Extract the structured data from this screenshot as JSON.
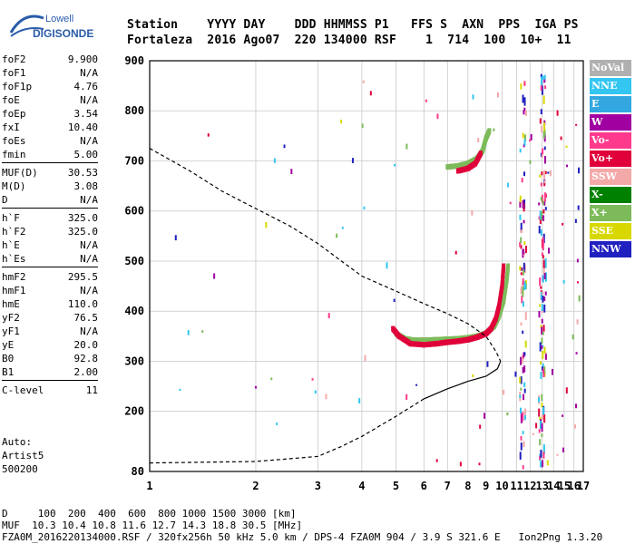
{
  "logo": {
    "line1": "Lowell",
    "line2": "DIGISONDE"
  },
  "header": {
    "labels": "Station    YYYY DAY    DDD HHMMSS P1   FFS S  AXN  PPS  IGA PS",
    "values": "Fortaleza  2016 Ago07  220 134000 RSF    1  714  100  10+  11"
  },
  "params": [
    {
      "label": "foF2",
      "value": "9.900"
    },
    {
      "label": "foF1",
      "value": "N/A"
    },
    {
      "label": "foF1p",
      "value": "4.76"
    },
    {
      "label": "foE",
      "value": "N/A"
    },
    {
      "label": "foEp",
      "value": "3.54"
    },
    {
      "label": "fxI",
      "value": "10.40"
    },
    {
      "label": "foEs",
      "value": "N/A"
    },
    {
      "label": "fmin",
      "value": "5.00"
    },
    {
      "label": "MUF(D)",
      "value": "30.53"
    },
    {
      "label": "M(D)",
      "value": "3.08"
    },
    {
      "label": "D",
      "value": "N/A"
    },
    {
      "label": "h`F",
      "value": "325.0"
    },
    {
      "label": "h`F2",
      "value": "325.0"
    },
    {
      "label": "h`E",
      "value": "N/A"
    },
    {
      "label": "h`Es",
      "value": "N/A"
    },
    {
      "label": "hmF2",
      "value": "295.5"
    },
    {
      "label": "hmF1",
      "value": "N/A"
    },
    {
      "label": "hmE",
      "value": "110.0"
    },
    {
      "label": "yF2",
      "value": "76.5"
    },
    {
      "label": "yF1",
      "value": "N/A"
    },
    {
      "label": "yE",
      "value": "20.0"
    },
    {
      "label": "B0",
      "value": "92.8"
    },
    {
      "label": "B1",
      "value": "2.00"
    },
    {
      "label": "C-level",
      "value": "11"
    }
  ],
  "auto": {
    "line1": "Auto:",
    "line2": "Artist5",
    "line3": "500200"
  },
  "legend": [
    {
      "label": "NoVal",
      "color": "#b0b0b0"
    },
    {
      "label": "NNE",
      "color": "#33c6f0"
    },
    {
      "label": "E",
      "color": "#33a8e0"
    },
    {
      "label": "W",
      "color": "#a000a0"
    },
    {
      "label": "Vo-",
      "color": "#ff3a8c"
    },
    {
      "label": "Vo+",
      "color": "#e0003a"
    },
    {
      "label": "SSW",
      "color": "#f4a9a9"
    },
    {
      "label": "X-",
      "color": "#008000"
    },
    {
      "label": "X+",
      "color": "#7dbb5a"
    },
    {
      "label": "SSE",
      "color": "#d8d800"
    },
    {
      "label": "NNW",
      "color": "#2020c0"
    }
  ],
  "footer": {
    "line1": "D     100  200  400  600  800 1000 1500 3000 [km]",
    "line2": "MUF  10.3 10.4 10.8 11.6 12.7 14.3 18.8 30.5 [MHz]",
    "line3": "FZA0M_2016220134000.RSF / 320fx256h 50 kHz 5.0 km / DPS-4 FZA0M 904 / 3.9 S 321.6 E   Ion2Png 1.3.20"
  },
  "chart_data": {
    "type": "scatter",
    "x_ticks": [
      1,
      2,
      3,
      4,
      5,
      6,
      7,
      8,
      9,
      10,
      11,
      12,
      13,
      14,
      15,
      16,
      17
    ],
    "y_ticks": [
      80,
      200,
      300,
      400,
      500,
      600,
      700,
      800,
      900
    ],
    "xlim": [
      1,
      17
    ],
    "ylim": [
      80,
      900
    ],
    "x_scale": "log",
    "grid": true,
    "series": [
      {
        "name": "X+",
        "color": "#7dbb5a",
        "points": [
          [
            5.0,
            355
          ],
          [
            5.3,
            345
          ],
          [
            5.6,
            342
          ],
          [
            6.0,
            342
          ],
          [
            6.5,
            343
          ],
          [
            7.0,
            344
          ],
          [
            7.5,
            345
          ],
          [
            8.0,
            347
          ],
          [
            8.5,
            350
          ],
          [
            9.0,
            356
          ],
          [
            9.5,
            370
          ],
          [
            9.8,
            390
          ],
          [
            10.1,
            420
          ],
          [
            10.3,
            460
          ],
          [
            10.4,
            490
          ],
          [
            7.0,
            688
          ],
          [
            7.5,
            690
          ],
          [
            8.0,
            695
          ],
          [
            8.5,
            705
          ],
          [
            8.8,
            720
          ],
          [
            9.0,
            745
          ],
          [
            9.2,
            760
          ]
        ]
      },
      {
        "name": "Vo+",
        "color": "#e0003a",
        "points": [
          [
            4.9,
            365
          ],
          [
            5.1,
            350
          ],
          [
            5.5,
            335
          ],
          [
            6.0,
            333
          ],
          [
            6.5,
            335
          ],
          [
            7.0,
            338
          ],
          [
            7.5,
            340
          ],
          [
            8.0,
            343
          ],
          [
            8.5,
            348
          ],
          [
            9.0,
            355
          ],
          [
            9.3,
            365
          ],
          [
            9.6,
            385
          ],
          [
            9.8,
            410
          ],
          [
            10.0,
            450
          ],
          [
            10.1,
            490
          ],
          [
            7.5,
            680
          ],
          [
            8.0,
            685
          ],
          [
            8.4,
            695
          ],
          [
            8.7,
            715
          ]
        ]
      },
      {
        "name": "profile",
        "color": "#000000",
        "points": [
          [
            1.0,
            725
          ],
          [
            1.3,
            680
          ],
          [
            1.6,
            640
          ],
          [
            2.0,
            605
          ],
          [
            2.5,
            570
          ],
          [
            3.0,
            535
          ],
          [
            3.5,
            500
          ],
          [
            4.0,
            470
          ],
          [
            5.0,
            440
          ],
          [
            6.0,
            415
          ],
          [
            7.0,
            395
          ],
          [
            8.0,
            375
          ],
          [
            9.0,
            350
          ],
          [
            9.6,
            320
          ],
          [
            9.9,
            300
          ],
          [
            9.7,
            285
          ],
          [
            9.0,
            270
          ],
          [
            8.0,
            260
          ],
          [
            7.0,
            245
          ],
          [
            6.0,
            225
          ],
          [
            5.0,
            190
          ],
          [
            4.0,
            150
          ],
          [
            3.5,
            130
          ],
          [
            3.0,
            110
          ],
          [
            2.0,
            100
          ],
          [
            1.0,
            97
          ]
        ]
      }
    ]
  }
}
